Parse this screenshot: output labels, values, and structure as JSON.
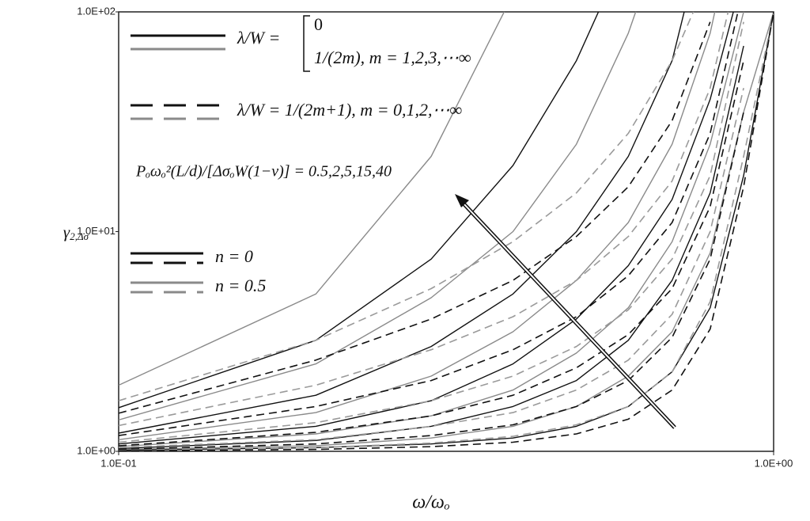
{
  "chart_data": {
    "type": "line",
    "xlabel": "ω/ωₒ",
    "ylabel": "γ",
    "ylabel_sub": "2,Δσ",
    "log_x": true,
    "log_y": true,
    "xlim": [
      0.1,
      1
    ],
    "ylim": [
      1,
      100
    ],
    "xticks": [
      {
        "value": 0.1,
        "label": "1.0E-01"
      },
      {
        "value": 1,
        "label": "1.0E+00"
      }
    ],
    "yticks": [
      {
        "value": 1,
        "label": "1.0E+00"
      },
      {
        "value": 10,
        "label": "1.0E+01"
      },
      {
        "value": 100,
        "label": "1.0E+02"
      }
    ],
    "x": [
      0.1,
      0.2,
      0.3,
      0.4,
      0.5,
      0.6,
      0.7,
      0.8,
      0.9,
      1.0
    ],
    "series": [
      {
        "color": "#8a8a8a",
        "dash": false,
        "values": [
          2.0,
          5.2,
          22,
          120,
          null,
          null,
          null,
          null,
          null,
          null
        ]
      },
      {
        "color": "#111111",
        "dash": false,
        "values": [
          1.58,
          3.2,
          7.5,
          20,
          60,
          200,
          null,
          null,
          null,
          null
        ]
      },
      {
        "color": "#8a8a8a",
        "dash": false,
        "values": [
          1.39,
          2.5,
          5.0,
          10,
          25,
          80,
          300,
          null,
          null,
          null
        ]
      },
      {
        "color": "#111111",
        "dash": false,
        "values": [
          1.21,
          1.8,
          3.0,
          5.2,
          10,
          22,
          60,
          300,
          null,
          null
        ]
      },
      {
        "color": "#8a8a8a",
        "dash": false,
        "values": [
          1.13,
          1.5,
          2.2,
          3.5,
          6,
          11,
          25,
          80,
          400,
          null
        ]
      },
      {
        "color": "#111111",
        "dash": false,
        "values": [
          1.08,
          1.3,
          1.7,
          2.5,
          4,
          7,
          14,
          40,
          150,
          null
        ]
      },
      {
        "color": "#8a8a8a",
        "dash": false,
        "values": [
          1.05,
          1.2,
          1.45,
          1.9,
          2.8,
          4.5,
          9,
          25,
          100,
          null
        ]
      },
      {
        "color": "#111111",
        "dash": false,
        "values": [
          1.03,
          1.12,
          1.3,
          1.6,
          2.1,
          3.2,
          6,
          15,
          70,
          null
        ]
      },
      {
        "color": "#8a8a8a",
        "dash": false,
        "values": [
          1.02,
          1.06,
          1.15,
          1.3,
          1.6,
          2.2,
          3.5,
          8,
          35,
          100
        ]
      },
      {
        "color": "#111111",
        "dash": false,
        "values": [
          1.01,
          1.04,
          1.08,
          1.15,
          1.3,
          1.6,
          2.3,
          4.5,
          18,
          100
        ]
      },
      {
        "color": "#9a9a9a",
        "dash": true,
        "values": [
          1.7,
          3.2,
          5.5,
          9,
          15,
          28,
          60,
          150,
          null,
          null
        ]
      },
      {
        "color": "#111111",
        "dash": true,
        "values": [
          1.49,
          2.6,
          4.0,
          6.0,
          9.5,
          16,
          32,
          90,
          null,
          null
        ]
      },
      {
        "color": "#9a9a9a",
        "dash": true,
        "values": [
          1.31,
          2.0,
          2.9,
          4.1,
          6,
          9.5,
          17,
          45,
          200,
          null
        ]
      },
      {
        "color": "#111111",
        "dash": true,
        "values": [
          1.18,
          1.6,
          2.1,
          2.9,
          4.1,
          6.3,
          11,
          28,
          130,
          null
        ]
      },
      {
        "color": "#9a9a9a",
        "dash": true,
        "values": [
          1.1,
          1.35,
          1.7,
          2.2,
          3.0,
          4.4,
          7.5,
          18,
          90,
          null
        ]
      },
      {
        "color": "#111111",
        "dash": true,
        "values": [
          1.06,
          1.22,
          1.45,
          1.8,
          2.4,
          3.4,
          5.5,
          13,
          60,
          null
        ]
      },
      {
        "color": "#9a9a9a",
        "dash": true,
        "values": [
          1.04,
          1.13,
          1.3,
          1.5,
          1.9,
          2.6,
          4.2,
          10,
          45,
          null
        ]
      },
      {
        "color": "#111111",
        "dash": true,
        "values": [
          1.02,
          1.08,
          1.18,
          1.32,
          1.6,
          2.1,
          3.3,
          7.5,
          35,
          null
        ]
      },
      {
        "color": "#9a9a9a",
        "dash": true,
        "values": [
          1.01,
          1.04,
          1.09,
          1.17,
          1.32,
          1.6,
          2.3,
          4.8,
          22,
          100
        ]
      },
      {
        "color": "#111111",
        "dash": true,
        "values": [
          1.005,
          1.02,
          1.05,
          1.1,
          1.2,
          1.4,
          1.9,
          3.6,
          16,
          100
        ]
      }
    ],
    "legend": [
      {
        "label": "λ/W =",
        "cases": [
          "0",
          "1/(2m),    m = 1,2,3,⋯∞"
        ],
        "lines": [
          {
            "color": "#111111",
            "dash": false
          },
          {
            "color": "#8a8a8a",
            "dash": false
          }
        ]
      },
      {
        "label": "λ/W = 1/(2m+1), m = 0,1,2,⋯∞",
        "lines": [
          {
            "color": "#111111",
            "dash": true
          },
          {
            "color": "#8a8a8a",
            "dash": true
          }
        ]
      },
      {
        "label": "n = 0",
        "lines": [
          {
            "color": "#111111",
            "dash": false
          },
          {
            "color": "#111111",
            "dash": true
          }
        ]
      },
      {
        "label": "n = 0.5",
        "lines": [
          {
            "color": "#8a8a8a",
            "dash": false
          },
          {
            "color": "#8a8a8a",
            "dash": true
          }
        ]
      }
    ],
    "annotation": "Pₒωₒ²(L/d)/[ΔσₒW(1−ν)] = 0.5,2,5,15,40"
  }
}
